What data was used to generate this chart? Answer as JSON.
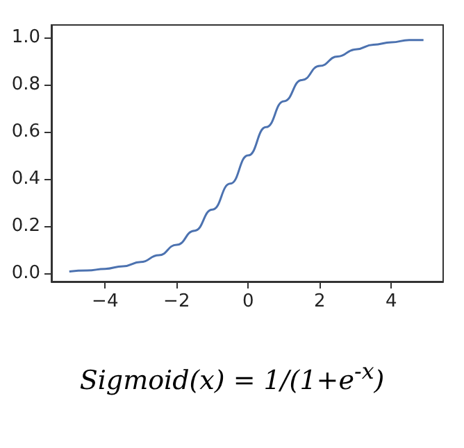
{
  "chart_data": {
    "type": "line",
    "x": [
      -5,
      -4.5,
      -4,
      -3.5,
      -3,
      -2.5,
      -2,
      -1.5,
      -1,
      -0.5,
      0,
      0.5,
      1,
      1.5,
      2,
      2.5,
      3,
      3.5,
      4,
      4.5,
      4.9
    ],
    "series": [
      {
        "color": "#4c72b0",
        "values": [
          0.007,
          0.011,
          0.018,
          0.029,
          0.047,
          0.076,
          0.12,
          0.18,
          0.27,
          0.38,
          0.5,
          0.62,
          0.73,
          0.82,
          0.88,
          0.92,
          0.95,
          0.97,
          0.98,
          0.99,
          0.99
        ]
      }
    ],
    "xlim": [
      -5.5,
      5.45
    ],
    "xticks": [
      -4,
      -2,
      0,
      2,
      4
    ],
    "ylim": [
      -0.036,
      1.054
    ],
    "yticks": [
      {
        "value": 0,
        "label": "0.0"
      },
      {
        "value": 0.2,
        "label": "0.2"
      },
      {
        "value": 0.4,
        "label": "0.4"
      },
      {
        "value": 0.6,
        "label": "0.6"
      },
      {
        "value": 0.8,
        "label": "0.8"
      },
      {
        "value": 1,
        "label": "1.0"
      }
    ],
    "grid": false,
    "marker": "none",
    "line_style": "solid",
    "annotations": [
      "Sigmoid(x) = 1/(1+e$^{-x}$)"
    ]
  }
}
